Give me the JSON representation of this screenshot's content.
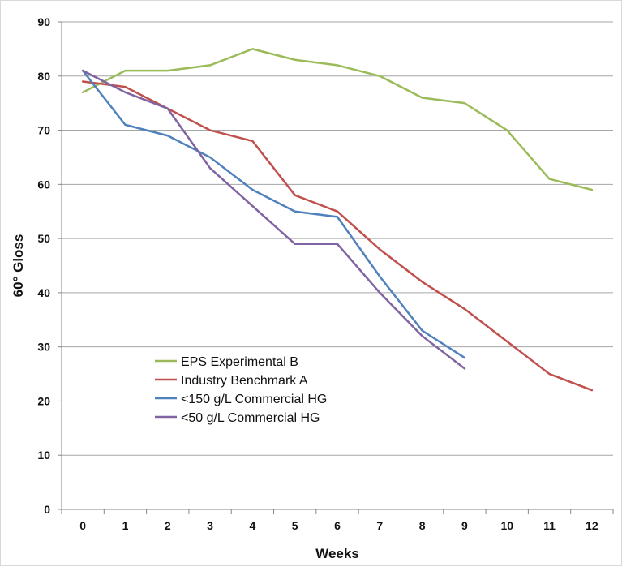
{
  "chart_data": {
    "type": "line",
    "title": "",
    "xlabel": "Weeks",
    "ylabel": "60° Gloss",
    "x": [
      0,
      1,
      2,
      3,
      4,
      5,
      6,
      7,
      8,
      9,
      10,
      11,
      12
    ],
    "xlim": [
      0,
      12
    ],
    "ylim": [
      0,
      90
    ],
    "y_ticks": [
      0,
      10,
      20,
      30,
      40,
      50,
      60,
      70,
      80,
      90
    ],
    "grid": "horizontal major gridlines",
    "legend_position": "lower-left inside plot",
    "series": [
      {
        "name": "EPS Experimental B",
        "color": "#9bbb59",
        "x": [
          0,
          1,
          2,
          3,
          4,
          5,
          6,
          7,
          8,
          9,
          10,
          11,
          12
        ],
        "y": [
          77,
          81,
          81,
          82,
          85,
          83,
          82,
          80,
          76,
          75,
          70,
          61,
          59
        ]
      },
      {
        "name": "Industry Benchmark A",
        "color": "#c0504d",
        "x": [
          0,
          1,
          2,
          3,
          4,
          5,
          6,
          7,
          8,
          9,
          10,
          11,
          12
        ],
        "y": [
          79,
          78,
          74,
          70,
          68,
          58,
          55,
          48,
          42,
          37,
          31,
          25,
          22
        ]
      },
      {
        "name": "<150 g/L Commercial HG",
        "color": "#4f81bd",
        "x": [
          0,
          1,
          2,
          3,
          4,
          5,
          6,
          7,
          8,
          9
        ],
        "y": [
          81,
          71,
          69,
          65,
          59,
          55,
          54,
          43,
          33,
          28
        ]
      },
      {
        "name": "<50 g/L Commercial HG",
        "color": "#8064a2",
        "x": [
          0,
          1,
          2,
          3,
          4,
          5,
          6,
          7,
          8,
          9
        ],
        "y": [
          81,
          77,
          74,
          63,
          56,
          49,
          49,
          40,
          32,
          26
        ]
      }
    ]
  }
}
